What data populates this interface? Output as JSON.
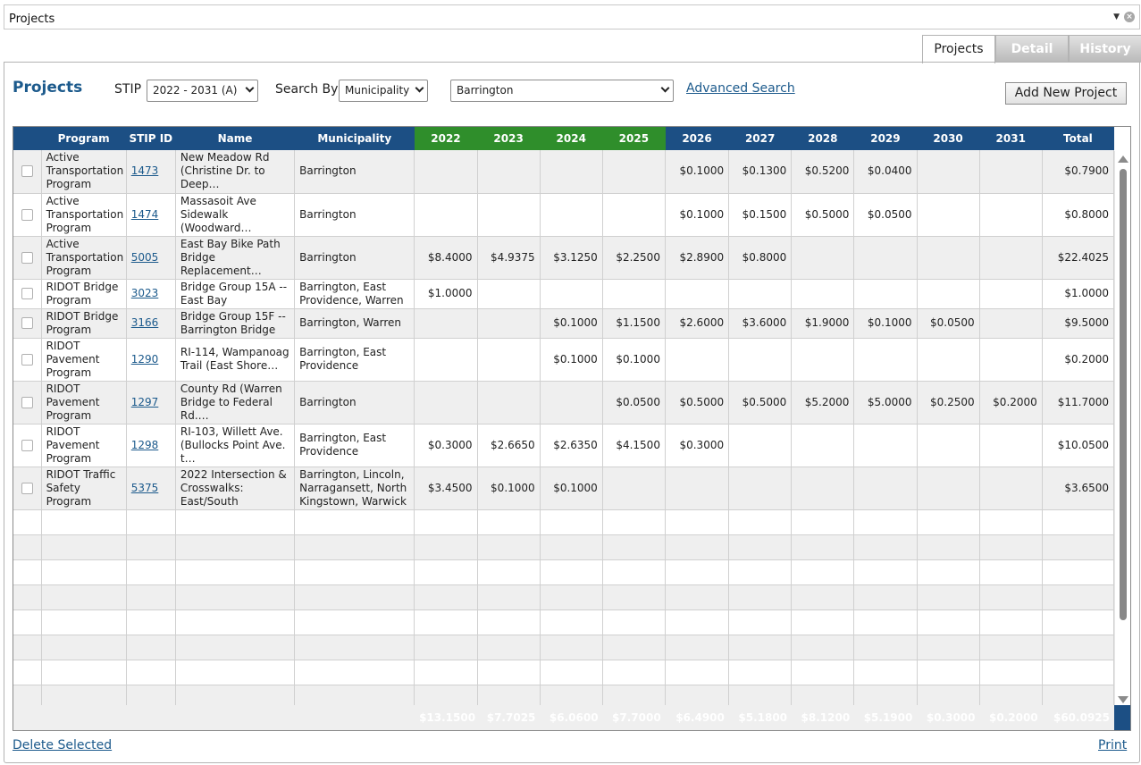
{
  "top_bar": {
    "title": "Projects"
  },
  "tabs": [
    {
      "label": "Projects"
    },
    {
      "label": "Detail"
    },
    {
      "label": "History"
    }
  ],
  "header": {
    "heading": "Projects",
    "stip_label": "STIP",
    "stip_value": "2022 - 2031 (A)",
    "search_by_label": "Search By",
    "search_by_value": "Municipality",
    "search_value": "Barrington",
    "advanced_search": "Advanced Search",
    "add_new_project": "Add New Project"
  },
  "grid": {
    "columns": [
      "Program",
      "STIP ID",
      "Name",
      "Municipality",
      "2022",
      "2023",
      "2024",
      "2025",
      "2026",
      "2027",
      "2028",
      "2029",
      "2030",
      "2031",
      "Total"
    ],
    "green_years": [
      "2022",
      "2023",
      "2024",
      "2025"
    ],
    "rows": [
      {
        "program": "Active Transportation Program",
        "stip_id": "1473",
        "name": "New Meadow Rd (Christine Dr. to Deep…",
        "municipality": "Barrington",
        "values": [
          "",
          "",
          "",
          "",
          "$0.1000",
          "$0.1300",
          "$0.5200",
          "$0.0400",
          "",
          "",
          "$0.7900"
        ]
      },
      {
        "program": "Active Transportation Program",
        "stip_id": "1474",
        "name": "Massasoit Ave Sidewalk (Woodward…",
        "municipality": "Barrington",
        "values": [
          "",
          "",
          "",
          "",
          "$0.1000",
          "$0.1500",
          "$0.5000",
          "$0.0500",
          "",
          "",
          "$0.8000"
        ]
      },
      {
        "program": "Active Transportation Program",
        "stip_id": "5005",
        "name": "East Bay Bike Path Bridge Replacement…",
        "municipality": "Barrington",
        "values": [
          "$8.4000",
          "$4.9375",
          "$3.1250",
          "$2.2500",
          "$2.8900",
          "$0.8000",
          "",
          "",
          "",
          "",
          "$22.4025"
        ]
      },
      {
        "program": "RIDOT Bridge Program",
        "stip_id": "3023",
        "name": "Bridge Group 15A -- East Bay",
        "municipality": "Barrington, East Providence, Warren",
        "values": [
          "$1.0000",
          "",
          "",
          "",
          "",
          "",
          "",
          "",
          "",
          "",
          "$1.0000"
        ]
      },
      {
        "program": "RIDOT Bridge Program",
        "stip_id": "3166",
        "name": "Bridge Group 15F -- Barrington Bridge",
        "municipality": "Barrington, Warren",
        "values": [
          "",
          "",
          "$0.1000",
          "$1.1500",
          "$2.6000",
          "$3.6000",
          "$1.9000",
          "$0.1000",
          "$0.0500",
          "",
          "$9.5000"
        ]
      },
      {
        "program": "RIDOT Pavement Program",
        "stip_id": "1290",
        "name": "RI-114, Wampanoag Trail (East Shore…",
        "municipality": "Barrington, East Providence",
        "values": [
          "",
          "",
          "$0.1000",
          "$0.1000",
          "",
          "",
          "",
          "",
          "",
          "",
          "$0.2000"
        ]
      },
      {
        "program": "RIDOT Pavement Program",
        "stip_id": "1297",
        "name": "County Rd (Warren Bridge to Federal Rd.…",
        "municipality": "Barrington",
        "values": [
          "",
          "",
          "",
          "$0.0500",
          "$0.5000",
          "$0.5000",
          "$5.2000",
          "$5.0000",
          "$0.2500",
          "$0.2000",
          "$11.7000"
        ]
      },
      {
        "program": "RIDOT Pavement Program",
        "stip_id": "1298",
        "name": "RI-103, Willett Ave. (Bullocks Point Ave. t…",
        "municipality": "Barrington, East Providence",
        "values": [
          "$0.3000",
          "$2.6650",
          "$2.6350",
          "$4.1500",
          "$0.3000",
          "",
          "",
          "",
          "",
          "",
          "$10.0500"
        ]
      },
      {
        "program": "RIDOT Traffic Safety Program",
        "stip_id": "5375",
        "name": "2022 Intersection & Crosswalks: East/South",
        "municipality": "Barrington, Lincoln, Narragansett, North Kingstown, Warwick",
        "values": [
          "$3.4500",
          "$0.1000",
          "$0.1000",
          "",
          "",
          "",
          "",
          "",
          "",
          "",
          "$3.6500"
        ]
      }
    ],
    "totals": [
      "$13.1500",
      "$7.7025",
      "$6.0600",
      "$7.7000",
      "$6.4900",
      "$5.1800",
      "$8.1200",
      "$5.1900",
      "$0.3000",
      "$0.2000",
      "$60.0925"
    ]
  },
  "footer": {
    "delete_selected": "Delete Selected",
    "print": "Print"
  },
  "colors": {
    "header_blue": "#1c4f84",
    "year_green": "#2f8e2b",
    "link_blue": "#1c5a8c"
  }
}
